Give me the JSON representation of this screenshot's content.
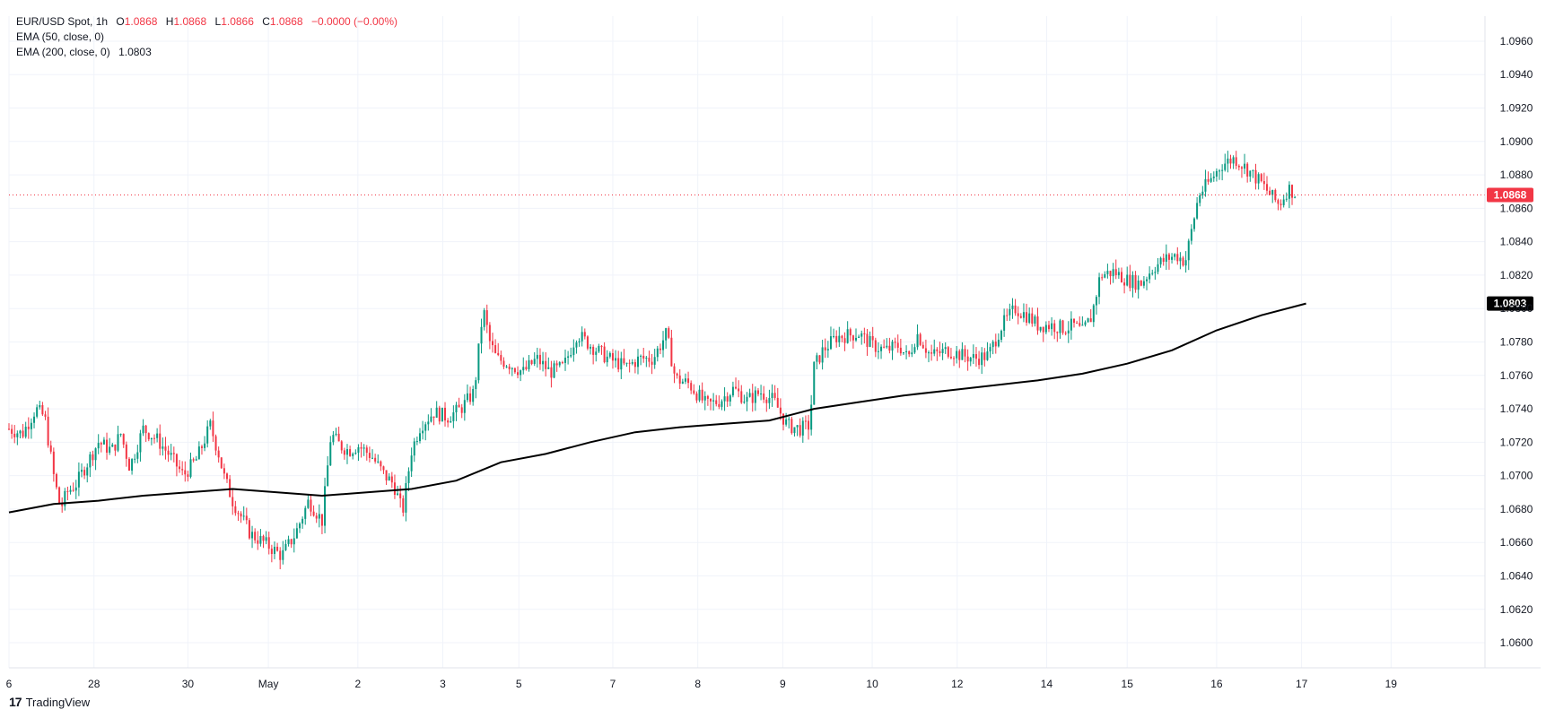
{
  "legend": {
    "symbol": "EUR/USD Spot, 1h",
    "open_label": "O",
    "open": "1.0868",
    "high_label": "H",
    "high": "1.0868",
    "low_label": "L",
    "low": "1.0866",
    "close_label": "C",
    "close": "1.0868",
    "change": "−0.0000 (−0.00%)",
    "ema50": "EMA (50, close, 0)",
    "ema200": "EMA (200, close, 0)",
    "ema200_value": "1.0803"
  },
  "watermark": "TradingView",
  "colors": {
    "up": "#089981",
    "down": "#f23645",
    "ema": "#000000",
    "grid": "#f0f3fa",
    "price_line": "#f23645"
  },
  "chart_data": {
    "type": "line",
    "instrument": "EUR/USD Spot",
    "timeframe": "1h",
    "ylim": [
      1.0585,
      1.0975
    ],
    "y_ticks": [
      "1.0960",
      "1.0940",
      "1.0920",
      "1.0900",
      "1.0880",
      "1.0860",
      "1.0840",
      "1.0820",
      "1.0800",
      "1.0780",
      "1.0760",
      "1.0740",
      "1.0720",
      "1.0700",
      "1.0680",
      "1.0660",
      "1.0640",
      "1.0620",
      "1.0600"
    ],
    "x_ticks": [
      "6",
      "28",
      "30",
      "May",
      "2",
      "3",
      "5",
      "7",
      "8",
      "9",
      "10",
      "12",
      "14",
      "15",
      "16",
      "17",
      "19"
    ],
    "x_tick_pos": [
      0,
      1.9,
      4.0,
      5.8,
      7.8,
      9.7,
      11.4,
      13.5,
      15.4,
      17.3,
      19.3,
      21.2,
      23.2,
      25.0,
      27.0,
      28.9,
      30.9
    ],
    "x_range": [
      0,
      33
    ],
    "last_price": {
      "value": 1.0868,
      "label": "1.0868"
    },
    "ema200_marker": {
      "value": 1.0803,
      "label": "1.0803"
    },
    "price_path": {
      "x": [
        0,
        0.3,
        0.6,
        0.8,
        1.0,
        1.15,
        1.3,
        1.5,
        1.7,
        2.0,
        2.3,
        2.5,
        2.7,
        3.0,
        3.3,
        3.6,
        3.9,
        4.2,
        4.5,
        4.7,
        4.8,
        5.0,
        5.2,
        5.4,
        5.7,
        6.1,
        6.4,
        6.7,
        7.0,
        7.2,
        7.4,
        7.6,
        7.8,
        8.1,
        8.4,
        8.6,
        8.8,
        9.0,
        9.2,
        9.5,
        9.8,
        10.1,
        10.4,
        10.6,
        10.75,
        10.9,
        11.1,
        11.5,
        11.8,
        12.1,
        12.4,
        12.7,
        13.0,
        13.4,
        13.8,
        14.1,
        14.4,
        14.7,
        14.9,
        15.2,
        15.6,
        15.9,
        16.2,
        16.5,
        16.8,
        17.1,
        17.4,
        17.7,
        17.9,
        18.0,
        18.2,
        18.5,
        19.0,
        19.3,
        19.6,
        19.9,
        20.1,
        20.3,
        20.6,
        21.0,
        21.3,
        21.6,
        21.9,
        22.2,
        22.5,
        22.8,
        23.0,
        23.3,
        23.6,
        23.8,
        24.0,
        24.2,
        24.4,
        24.7,
        25.0,
        25.3,
        25.6,
        25.9,
        26.1,
        26.3,
        26.6,
        26.9,
        27.1,
        27.4,
        27.7,
        28.0,
        28.2,
        28.4,
        28.6,
        28.8
      ],
      "y": [
        1.0728,
        1.0725,
        1.074,
        1.0735,
        1.07,
        1.068,
        1.069,
        1.0695,
        1.0705,
        1.072,
        1.0715,
        1.0725,
        1.0705,
        1.0728,
        1.0722,
        1.0712,
        1.07,
        1.071,
        1.073,
        1.0712,
        1.07,
        1.0685,
        1.0675,
        1.0665,
        1.066,
        1.0652,
        1.0665,
        1.0685,
        1.0673,
        1.0725,
        1.0718,
        1.0715,
        1.0718,
        1.0712,
        1.07,
        1.0695,
        1.0678,
        1.0715,
        1.073,
        1.0738,
        1.0735,
        1.074,
        1.075,
        1.08,
        1.078,
        1.077,
        1.0768,
        1.0762,
        1.077,
        1.0762,
        1.0765,
        1.0785,
        1.0778,
        1.077,
        1.0765,
        1.077,
        1.077,
        1.0785,
        1.0758,
        1.0755,
        1.0742,
        1.0745,
        1.0752,
        1.0745,
        1.075,
        1.0745,
        1.073,
        1.0728,
        1.073,
        1.0765,
        1.0775,
        1.0783,
        1.0785,
        1.0778,
        1.0775,
        1.0778,
        1.077,
        1.0785,
        1.0772,
        1.0775,
        1.0772,
        1.077,
        1.0772,
        1.079,
        1.08,
        1.0795,
        1.079,
        1.079,
        1.0788,
        1.079,
        1.0786,
        1.0795,
        1.082,
        1.0822,
        1.0817,
        1.0815,
        1.0825,
        1.083,
        1.0832,
        1.0828,
        1.0868,
        1.0878,
        1.0886,
        1.089,
        1.0883,
        1.0875,
        1.0868,
        1.0862,
        1.0872,
        1.0868
      ]
    },
    "series": [
      {
        "x": [
          0,
          1,
          2,
          3,
          4,
          5,
          6,
          7,
          8,
          9,
          10,
          11,
          12,
          13,
          14,
          15,
          16,
          17,
          18,
          19,
          20,
          21,
          22,
          23,
          24,
          25,
          26,
          27,
          28,
          29
        ],
        "values": [
          1.0678,
          1.0683,
          1.0685,
          1.0688,
          1.069,
          1.0692,
          1.069,
          1.0688,
          1.069,
          1.0692,
          1.0697,
          1.0708,
          1.0713,
          1.072,
          1.0726,
          1.0729,
          1.0731,
          1.0733,
          1.074,
          1.0744,
          1.0748,
          1.0751,
          1.0754,
          1.0757,
          1.0761,
          1.0767,
          1.0775,
          1.0787,
          1.0796,
          1.0803
        ]
      }
    ]
  }
}
